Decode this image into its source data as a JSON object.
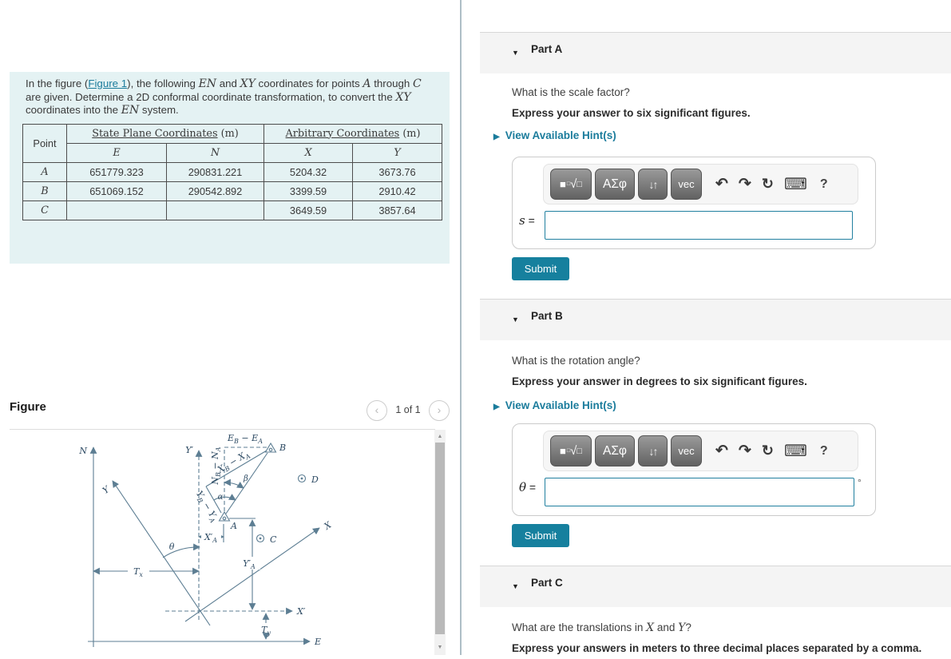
{
  "ui": {
    "collapse_arrow": "▼",
    "hint_arrow": "▶",
    "equals": "=",
    "prev_glyph": "‹",
    "next_glyph": "›",
    "scroll_up": "▲",
    "scroll_down": "▼"
  },
  "colors": {
    "accent_teal": "#16809e",
    "link_teal": "#1c7c9c",
    "problem_box_bg": "#e4f2f3",
    "figure_line": "#5d7e93"
  },
  "problem": {
    "intro_runs": [
      {
        "t": "In the figure (",
        "k": "p"
      },
      {
        "t": "Figure 1",
        "k": "link"
      },
      {
        "t": "), the following ",
        "k": "p"
      },
      {
        "t": "EN",
        "k": "m"
      },
      {
        "t": " and ",
        "k": "p"
      },
      {
        "t": "XY",
        "k": "m"
      },
      {
        "t": " coordinates for points ",
        "k": "p"
      },
      {
        "t": "A",
        "k": "m"
      },
      {
        "t": " through ",
        "k": "p"
      },
      {
        "t": "C",
        "k": "m"
      },
      {
        "t": " are given. Determine a 2D conformal coordinate transformation, to convert the ",
        "k": "p"
      },
      {
        "t": "XY",
        "k": "m"
      },
      {
        "t": " coordinates into the ",
        "k": "p"
      },
      {
        "t": "EN",
        "k": "m"
      },
      {
        "t": " system.",
        "k": "p"
      }
    ],
    "table": {
      "corner": "Point",
      "group1": "State Plane Coordinates",
      "group1_unit": " (m)",
      "group2": "Arbitrary Coordinates",
      "group2_unit": " (m)",
      "h_e": "E",
      "h_n": "N",
      "h_x": "X",
      "h_y": "Y",
      "rows": [
        {
          "point": "A",
          "e": "651779.323",
          "n": "290831.221",
          "x": "5204.32",
          "y": "3673.76"
        },
        {
          "point": "B",
          "e": "651069.152",
          "n": "290542.892",
          "x": "3399.59",
          "y": "2910.42"
        },
        {
          "point": "C",
          "e": "",
          "n": "",
          "x": "3649.59",
          "y": "3857.64"
        }
      ]
    }
  },
  "figure": {
    "title": "Figure",
    "page_indicator": "1 of 1",
    "labels": {
      "n_axis": "N",
      "e_axis": "E",
      "y_prime": "Y′",
      "x_prime": "X′",
      "y_axis": "Y",
      "x_axis": "X",
      "theta": "θ",
      "alpha": "α",
      "beta": "β",
      "t_x": "T_x",
      "t_y": "T_y",
      "x_prime_a": "X′_A",
      "y_prime_a": "Y′_A",
      "eb_ea": "E_B − E_A",
      "nb_na": "N_B − N_A",
      "xb_xa": "X_B − X_A",
      "yb_ya": "Y_B − Y_A",
      "pt_a": "A",
      "pt_b": "B",
      "pt_c": "C",
      "pt_d": "D"
    }
  },
  "toolbar": {
    "b1_square": "■",
    "b1_sup": "□",
    "b1_root": "√",
    "b1_box": "□",
    "b2": "ΑΣφ",
    "b3": "↓↑",
    "b4": "vec",
    "undo": "↶",
    "redo": "↷",
    "reset": "↻",
    "keyboard": "⌨",
    "help": "?"
  },
  "parts": [
    {
      "title": "Part A",
      "question": "What is the scale factor?",
      "instruction": "Express your answer to six significant figures.",
      "hint": "View Available Hint(s)",
      "var": "s",
      "unit": "",
      "submit": "Submit"
    },
    {
      "title": "Part B",
      "question": "What is the rotation angle?",
      "instruction": "Express your answer in degrees to six significant figures.",
      "hint": "View Available Hint(s)",
      "var": "θ",
      "unit": "°",
      "submit": "Submit"
    },
    {
      "title": "Part C",
      "question_runs": [
        {
          "t": "What are the translations in ",
          "k": "p"
        },
        {
          "t": "X",
          "k": "m"
        },
        {
          "t": " and ",
          "k": "p"
        },
        {
          "t": "Y",
          "k": "m"
        },
        {
          "t": "?",
          "k": "p"
        }
      ],
      "instruction": "Express your answers in meters to three decimal places separated by a comma."
    }
  ]
}
